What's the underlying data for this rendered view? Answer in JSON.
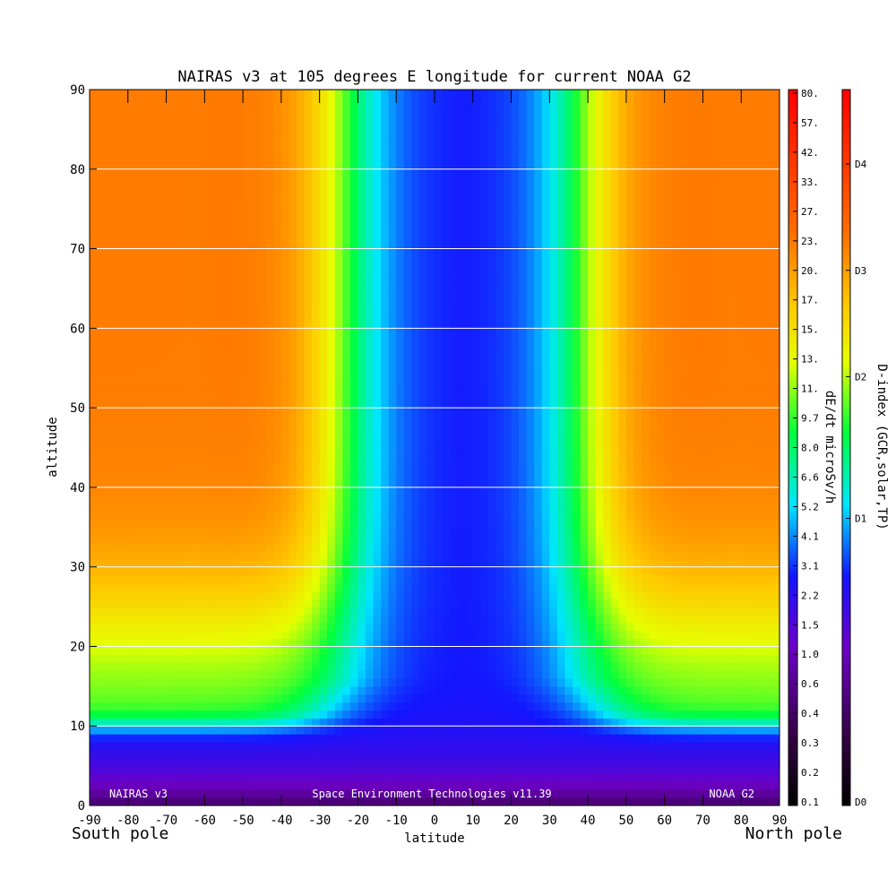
{
  "chart_data": {
    "type": "heatmap",
    "title": "NAIRAS v3 at 105 degrees E longitude for current NOAA G2",
    "xlabel": "latitude",
    "ylabel": "altitude",
    "xlim": [
      -90,
      90
    ],
    "ylim": [
      0,
      90
    ],
    "x_ticks": [
      "-90",
      "-80",
      "-70",
      "-60",
      "-50",
      "-40",
      "-30",
      "-20",
      "-10",
      "0",
      "10",
      "20",
      "30",
      "40",
      "50",
      "60",
      "70",
      "80",
      "90"
    ],
    "y_ticks": [
      "0",
      "10",
      "20",
      "30",
      "40",
      "50",
      "60",
      "70",
      "80",
      "90"
    ],
    "x_end_labels": {
      "left": "South pole",
      "right": "North pole"
    },
    "grid": "horizontal lines at every 10 altitude",
    "annotations": {
      "left": "NAIRAS v3",
      "center": "Space Environment Technologies v11.39",
      "right": "NOAA G2"
    },
    "colorbar_dose": {
      "label": "dE/dt microSv/h",
      "ticks": [
        "0.1",
        "0.2",
        "0.3",
        "0.4",
        "0.6",
        "1.0",
        "1.5",
        "2.2",
        "3.1",
        "4.1",
        "5.2",
        "6.6",
        "8.0",
        "9.7",
        "11.",
        "13.",
        "15.",
        "17.",
        "20.",
        "23.",
        "27.",
        "33.",
        "42.",
        "57.",
        "80."
      ]
    },
    "colorbar_dindex": {
      "label": "D-index (GCR,solar,TP)",
      "ticks": [
        "D0",
        "D1",
        "D2",
        "D3",
        "D4"
      ],
      "tick_fractions": [
        0.0,
        0.4,
        0.6,
        0.75,
        0.9
      ]
    },
    "field_description": {
      "low_dose_band_latitudes": [
        -25,
        35
      ],
      "high_dose_levels": "polar regions above ~30 altitude reach about 33-42 microSv/h",
      "boundary_altitude": 10
    }
  }
}
